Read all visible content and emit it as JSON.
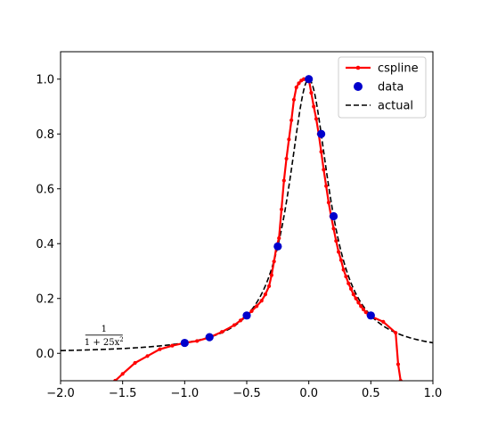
{
  "chart_data": {
    "type": "line",
    "title": "",
    "xlabel": "",
    "ylabel": "",
    "xlim": [
      -2.0,
      1.0
    ],
    "ylim": [
      -0.1,
      1.1
    ],
    "xticks": [
      -2.0,
      -1.5,
      -1.0,
      -0.5,
      0.0,
      0.5,
      1.0
    ],
    "yticks": [
      0.0,
      0.2,
      0.4,
      0.6,
      0.8,
      1.0
    ],
    "xtick_labels": [
      "−2.0",
      "−1.5",
      "−1.0",
      "−0.5",
      "0.0",
      "0.5",
      "1.0"
    ],
    "ytick_labels": [
      "0.0",
      "0.2",
      "0.4",
      "0.6",
      "0.8",
      "1.0"
    ],
    "grid": false,
    "legend_position": "top-right",
    "annotation": {
      "numerator": "1",
      "denominator": "1 + 25x",
      "exponent": "2",
      "x": -1.65,
      "y": 0.06
    },
    "series": [
      {
        "name": "cspline",
        "style": "line-with-dot-markers",
        "color": "#ff0000",
        "x": [
          -1.56,
          -1.5,
          -1.4,
          -1.3,
          -1.2,
          -1.1,
          -1.0,
          -0.9,
          -0.8,
          -0.7,
          -0.6,
          -0.55,
          -0.5,
          -0.46,
          -0.42,
          -0.38,
          -0.35,
          -0.32,
          -0.3,
          -0.28,
          -0.26,
          -0.24,
          -0.22,
          -0.2,
          -0.18,
          -0.16,
          -0.14,
          -0.12,
          -0.1,
          -0.08,
          -0.06,
          -0.04,
          -0.02,
          0.0,
          0.02,
          0.04,
          0.06,
          0.08,
          0.1,
          0.12,
          0.14,
          0.16,
          0.18,
          0.2,
          0.22,
          0.24,
          0.26,
          0.28,
          0.3,
          0.32,
          0.34,
          0.36,
          0.38,
          0.4,
          0.42,
          0.44,
          0.46,
          0.48,
          0.5,
          0.6,
          0.7,
          0.72,
          0.74
        ],
        "y": [
          -0.1,
          -0.075,
          -0.035,
          -0.01,
          0.015,
          0.028,
          0.038,
          0.045,
          0.058,
          0.078,
          0.103,
          0.12,
          0.138,
          0.154,
          0.172,
          0.192,
          0.215,
          0.245,
          0.285,
          0.335,
          0.39,
          0.42,
          0.525,
          0.63,
          0.71,
          0.78,
          0.85,
          0.925,
          0.97,
          0.985,
          0.995,
          1.0,
          1.0,
          1.0,
          0.95,
          0.9,
          0.855,
          0.8,
          0.735,
          0.67,
          0.61,
          0.55,
          0.5,
          0.455,
          0.41,
          0.37,
          0.34,
          0.305,
          0.28,
          0.255,
          0.235,
          0.215,
          0.2,
          0.185,
          0.172,
          0.16,
          0.15,
          0.14,
          0.135,
          0.115,
          0.075,
          -0.04,
          -0.1
        ]
      },
      {
        "name": "data",
        "style": "markers",
        "color": "#0000cc",
        "x": [
          -1.0,
          -0.8,
          -0.5,
          -0.25,
          0.0,
          0.1,
          0.2,
          0.5
        ],
        "y": [
          0.038,
          0.059,
          0.138,
          0.39,
          1.0,
          0.8,
          0.5,
          0.138
        ]
      },
      {
        "name": "actual",
        "style": "dashed-line",
        "color": "#000000",
        "function": "1/(1+25x^2)",
        "x_range": [
          -2.0,
          1.0
        ]
      }
    ]
  }
}
